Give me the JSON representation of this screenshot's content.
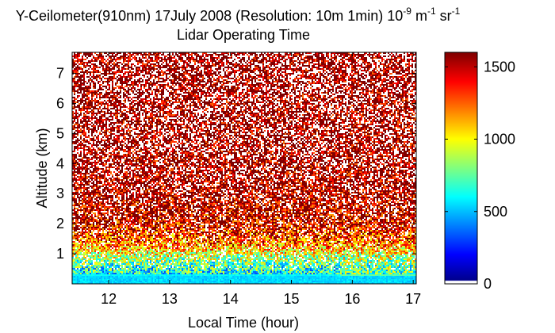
{
  "chart_data": {
    "type": "heatmap",
    "title_line1_main": "Y-Ceilometer(910nm) 17July 2008 (Resolution: 10m 1min) 10",
    "title_line1_exp1": "-9",
    "title_line1_mid": " m",
    "title_line1_exp2": "-1",
    "title_line1_mid2": " sr",
    "title_line1_exp3": "-1",
    "title_line2": "Lidar Operating Time",
    "xlabel": "Local Time (hour)",
    "ylabel": "Altitude (km)",
    "xlim": [
      11.4,
      17.05
    ],
    "ylim": [
      0,
      7.7
    ],
    "xticks": [
      12,
      13,
      14,
      15,
      16,
      17
    ],
    "yticks": [
      1,
      2,
      3,
      4,
      5,
      6,
      7
    ],
    "colorbar": {
      "min": 0,
      "max": 1600,
      "ticks": [
        0,
        500,
        1000,
        1500
      ]
    },
    "description_profile": {
      "altitude_km": [
        0.0,
        0.1,
        0.3,
        0.6,
        0.9,
        1.3,
        2.0,
        3.0,
        7.7
      ],
      "typical_value": [
        520,
        540,
        600,
        700,
        900,
        1200,
        1450,
        1550,
        1600
      ]
    },
    "colors": {
      "frame": "#000000",
      "background": "#ffffff",
      "noise_white": "#ffffff"
    }
  }
}
